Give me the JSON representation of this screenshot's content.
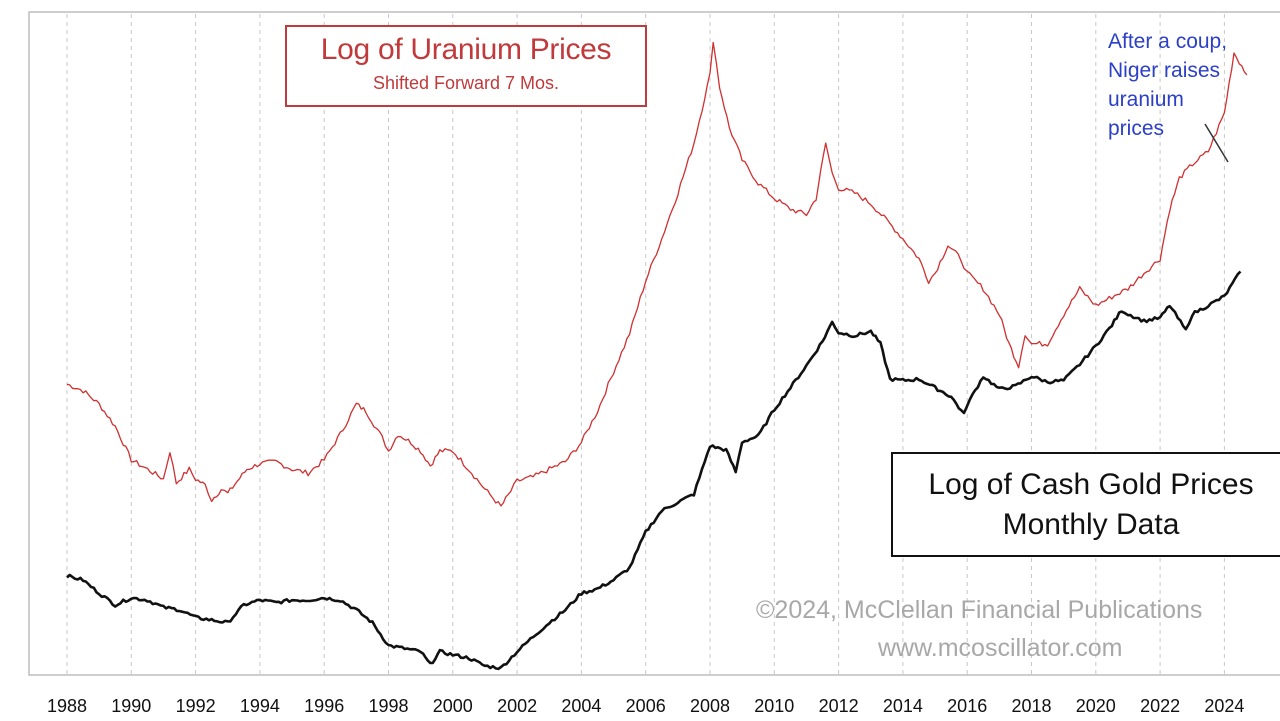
{
  "chart_data": {
    "type": "line",
    "x_tick_labels": [
      "1988",
      "1990",
      "1992",
      "1994",
      "1996",
      "1998",
      "2000",
      "2002",
      "2004",
      "2006",
      "2008",
      "2010",
      "2012",
      "2014",
      "2016",
      "2018",
      "2020",
      "2022",
      "2024"
    ],
    "xlim": [
      1988,
      2025
    ],
    "grid": {
      "vertical_dashed": true,
      "horizontal": false
    },
    "series": [
      {
        "name": "Log of Uranium Prices",
        "subtitle": "Shifted Forward 7 Mos.",
        "color": "#d03030",
        "scale": "log",
        "points": [
          [
            1988,
            16.5
          ],
          [
            1988.5,
            16
          ],
          [
            1989,
            15
          ],
          [
            1989.5,
            13.5
          ],
          [
            1990,
            11.5
          ],
          [
            1990.5,
            11
          ],
          [
            1991,
            10.5
          ],
          [
            1991.2,
            12
          ],
          [
            1991.4,
            10.3
          ],
          [
            1991.8,
            11
          ],
          [
            1992,
            10.5
          ],
          [
            1992.3,
            10.2
          ],
          [
            1992.5,
            9.5
          ],
          [
            1992.8,
            10
          ],
          [
            1993,
            9.8
          ],
          [
            1993.3,
            10.4
          ],
          [
            1993.6,
            11
          ],
          [
            1994,
            11.3
          ],
          [
            1994.5,
            11.4
          ],
          [
            1995,
            11
          ],
          [
            1995.5,
            10.8
          ],
          [
            1996,
            11.5
          ],
          [
            1996.5,
            13
          ],
          [
            1997,
            15
          ],
          [
            1997.3,
            14.5
          ],
          [
            1997.8,
            12.8
          ],
          [
            1998,
            12
          ],
          [
            1998.3,
            13
          ],
          [
            1998.7,
            12.5
          ],
          [
            1999,
            12
          ],
          [
            1999.3,
            11.2
          ],
          [
            1999.6,
            12
          ],
          [
            2000,
            12
          ],
          [
            2000.5,
            11
          ],
          [
            2001,
            10
          ],
          [
            2001.5,
            9.2
          ],
          [
            2001.8,
            9.9
          ],
          [
            2002,
            10.4
          ],
          [
            2002.5,
            10.6
          ],
          [
            2003,
            11
          ],
          [
            2003.5,
            11.4
          ],
          [
            2004,
            12.5
          ],
          [
            2004.5,
            14.5
          ],
          [
            2005,
            17.5
          ],
          [
            2005.5,
            21
          ],
          [
            2006,
            27
          ],
          [
            2006.5,
            33
          ],
          [
            2007,
            41
          ],
          [
            2007.5,
            52
          ],
          [
            2008,
            72
          ],
          [
            2008.1,
            85
          ],
          [
            2008.3,
            68
          ],
          [
            2008.6,
            56
          ],
          [
            2009,
            48
          ],
          [
            2009.5,
            43
          ],
          [
            2010,
            40
          ],
          [
            2010.5,
            38
          ],
          [
            2011,
            37
          ],
          [
            2011.3,
            40
          ],
          [
            2011.6,
            52
          ],
          [
            2011.8,
            45
          ],
          [
            2012,
            42
          ],
          [
            2012.5,
            41
          ],
          [
            2013,
            39
          ],
          [
            2013.5,
            36
          ],
          [
            2014,
            33
          ],
          [
            2014.5,
            30
          ],
          [
            2014.8,
            27
          ],
          [
            2015,
            28
          ],
          [
            2015.4,
            32
          ],
          [
            2015.8,
            30
          ],
          [
            2016,
            28
          ],
          [
            2016.5,
            26
          ],
          [
            2017,
            23
          ],
          [
            2017.3,
            20
          ],
          [
            2017.6,
            18
          ],
          [
            2017.8,
            21
          ],
          [
            2018,
            20
          ],
          [
            2018.5,
            20
          ],
          [
            2019,
            23
          ],
          [
            2019.5,
            26
          ],
          [
            2020,
            24
          ],
          [
            2020.5,
            25
          ],
          [
            2021,
            26
          ],
          [
            2021.5,
            28
          ],
          [
            2022,
            30
          ],
          [
            2022.3,
            38
          ],
          [
            2022.6,
            44
          ],
          [
            2023,
            47
          ],
          [
            2023.5,
            50
          ],
          [
            2024,
            60
          ],
          [
            2024.3,
            80
          ],
          [
            2024.7,
            72
          ]
        ]
      },
      {
        "name": "Log of Cash Gold Prices",
        "subtitle": "Monthly Data",
        "color": "#111111",
        "scale": "log",
        "points": [
          [
            1988,
            440
          ],
          [
            1988.5,
            430
          ],
          [
            1989,
            400
          ],
          [
            1989.5,
            375
          ],
          [
            1990,
            390
          ],
          [
            1990.5,
            385
          ],
          [
            1991,
            370
          ],
          [
            1991.5,
            365
          ],
          [
            1992,
            350
          ],
          [
            1992.5,
            345
          ],
          [
            1993,
            340
          ],
          [
            1993.5,
            375
          ],
          [
            1994,
            385
          ],
          [
            1994.5,
            380
          ],
          [
            1995,
            385
          ],
          [
            1995.5,
            385
          ],
          [
            1996,
            390
          ],
          [
            1996.5,
            385
          ],
          [
            1997,
            365
          ],
          [
            1997.5,
            340
          ],
          [
            1998,
            300
          ],
          [
            1998.5,
            295
          ],
          [
            1999,
            290
          ],
          [
            1999.3,
            270
          ],
          [
            1999.6,
            290
          ],
          [
            2000,
            285
          ],
          [
            2000.5,
            280
          ],
          [
            2001,
            268
          ],
          [
            2001.5,
            265
          ],
          [
            2002,
            290
          ],
          [
            2002.5,
            315
          ],
          [
            2003,
            340
          ],
          [
            2003.5,
            365
          ],
          [
            2004,
            400
          ],
          [
            2004.5,
            410
          ],
          [
            2005,
            430
          ],
          [
            2005.5,
            460
          ],
          [
            2006,
            560
          ],
          [
            2006.5,
            630
          ],
          [
            2007,
            660
          ],
          [
            2007.5,
            690
          ],
          [
            2008,
            900
          ],
          [
            2008.5,
            880
          ],
          [
            2008.8,
            780
          ],
          [
            2009,
            920
          ],
          [
            2009.5,
            950
          ],
          [
            2010,
            1100
          ],
          [
            2010.5,
            1240
          ],
          [
            2011,
            1400
          ],
          [
            2011.5,
            1600
          ],
          [
            2011.8,
            1780
          ],
          [
            2012,
            1680
          ],
          [
            2012.5,
            1650
          ],
          [
            2013,
            1690
          ],
          [
            2013.3,
            1580
          ],
          [
            2013.6,
            1300
          ],
          [
            2014,
            1290
          ],
          [
            2014.5,
            1300
          ],
          [
            2015,
            1240
          ],
          [
            2015.5,
            1180
          ],
          [
            2015.9,
            1070
          ],
          [
            2016,
            1130
          ],
          [
            2016.5,
            1320
          ],
          [
            2017,
            1230
          ],
          [
            2017.5,
            1250
          ],
          [
            2018,
            1320
          ],
          [
            2018.5,
            1280
          ],
          [
            2019,
            1290
          ],
          [
            2019.5,
            1410
          ],
          [
            2020,
            1560
          ],
          [
            2020.5,
            1750
          ],
          [
            2020.8,
            1900
          ],
          [
            2021,
            1860
          ],
          [
            2021.5,
            1790
          ],
          [
            2022,
            1820
          ],
          [
            2022.3,
            1950
          ],
          [
            2022.8,
            1700
          ],
          [
            2023,
            1860
          ],
          [
            2023.5,
            1950
          ],
          [
            2024,
            2050
          ],
          [
            2024.5,
            2350
          ]
        ]
      }
    ]
  },
  "labels": {
    "uranium_title": "Log of Uranium Prices",
    "uranium_subtitle": "Shifted Forward 7 Mos.",
    "gold_title": "Log of Cash Gold Prices",
    "gold_subtitle": "Monthly Data",
    "annotation": "After a coup, Niger raises uranium prices",
    "annotation_lines": [
      "After a coup,",
      "Niger raises",
      "uranium",
      "prices"
    ],
    "copyright": "©2024, McClellan Financial Publications",
    "website": "www.mcoscillator.com"
  }
}
